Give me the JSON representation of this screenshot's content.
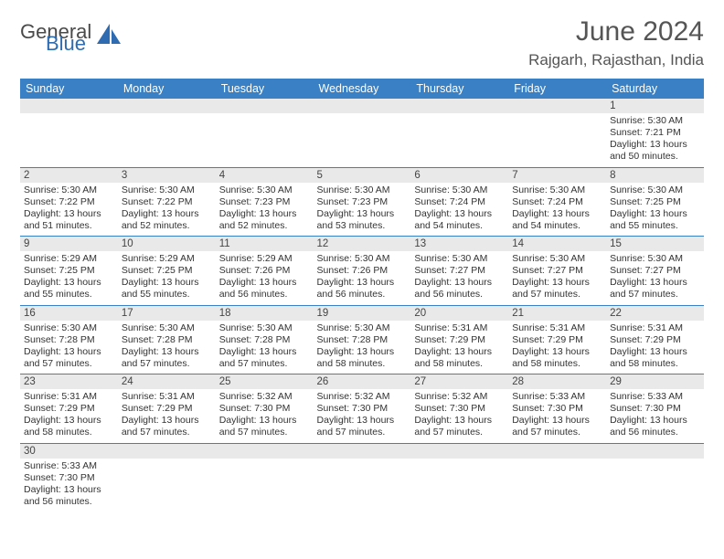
{
  "logo": {
    "part1": "General",
    "part2": "Blue"
  },
  "title": "June 2024",
  "location": "Rajgarh, Rajasthan, India",
  "colors": {
    "header_bg": "#3a80c4",
    "header_fg": "#ffffff",
    "daynum_bg": "#e9e9e9",
    "rule": "#3a80c4",
    "logo_gray": "#4a4a4a",
    "logo_blue": "#2e6bb0"
  },
  "day_headers": [
    "Sunday",
    "Monday",
    "Tuesday",
    "Wednesday",
    "Thursday",
    "Friday",
    "Saturday"
  ],
  "weeks": [
    [
      {
        "empty": true
      },
      {
        "empty": true
      },
      {
        "empty": true
      },
      {
        "empty": true
      },
      {
        "empty": true
      },
      {
        "empty": true
      },
      {
        "day": "1",
        "sunrise": "Sunrise: 5:30 AM",
        "sunset": "Sunset: 7:21 PM",
        "daylight": "Daylight: 13 hours and 50 minutes."
      }
    ],
    [
      {
        "day": "2",
        "sunrise": "Sunrise: 5:30 AM",
        "sunset": "Sunset: 7:22 PM",
        "daylight": "Daylight: 13 hours and 51 minutes."
      },
      {
        "day": "3",
        "sunrise": "Sunrise: 5:30 AM",
        "sunset": "Sunset: 7:22 PM",
        "daylight": "Daylight: 13 hours and 52 minutes."
      },
      {
        "day": "4",
        "sunrise": "Sunrise: 5:30 AM",
        "sunset": "Sunset: 7:23 PM",
        "daylight": "Daylight: 13 hours and 52 minutes."
      },
      {
        "day": "5",
        "sunrise": "Sunrise: 5:30 AM",
        "sunset": "Sunset: 7:23 PM",
        "daylight": "Daylight: 13 hours and 53 minutes."
      },
      {
        "day": "6",
        "sunrise": "Sunrise: 5:30 AM",
        "sunset": "Sunset: 7:24 PM",
        "daylight": "Daylight: 13 hours and 54 minutes."
      },
      {
        "day": "7",
        "sunrise": "Sunrise: 5:30 AM",
        "sunset": "Sunset: 7:24 PM",
        "daylight": "Daylight: 13 hours and 54 minutes."
      },
      {
        "day": "8",
        "sunrise": "Sunrise: 5:30 AM",
        "sunset": "Sunset: 7:25 PM",
        "daylight": "Daylight: 13 hours and 55 minutes."
      }
    ],
    [
      {
        "day": "9",
        "sunrise": "Sunrise: 5:29 AM",
        "sunset": "Sunset: 7:25 PM",
        "daylight": "Daylight: 13 hours and 55 minutes."
      },
      {
        "day": "10",
        "sunrise": "Sunrise: 5:29 AM",
        "sunset": "Sunset: 7:25 PM",
        "daylight": "Daylight: 13 hours and 55 minutes."
      },
      {
        "day": "11",
        "sunrise": "Sunrise: 5:29 AM",
        "sunset": "Sunset: 7:26 PM",
        "daylight": "Daylight: 13 hours and 56 minutes."
      },
      {
        "day": "12",
        "sunrise": "Sunrise: 5:30 AM",
        "sunset": "Sunset: 7:26 PM",
        "daylight": "Daylight: 13 hours and 56 minutes."
      },
      {
        "day": "13",
        "sunrise": "Sunrise: 5:30 AM",
        "sunset": "Sunset: 7:27 PM",
        "daylight": "Daylight: 13 hours and 56 minutes."
      },
      {
        "day": "14",
        "sunrise": "Sunrise: 5:30 AM",
        "sunset": "Sunset: 7:27 PM",
        "daylight": "Daylight: 13 hours and 57 minutes."
      },
      {
        "day": "15",
        "sunrise": "Sunrise: 5:30 AM",
        "sunset": "Sunset: 7:27 PM",
        "daylight": "Daylight: 13 hours and 57 minutes."
      }
    ],
    [
      {
        "day": "16",
        "sunrise": "Sunrise: 5:30 AM",
        "sunset": "Sunset: 7:28 PM",
        "daylight": "Daylight: 13 hours and 57 minutes."
      },
      {
        "day": "17",
        "sunrise": "Sunrise: 5:30 AM",
        "sunset": "Sunset: 7:28 PM",
        "daylight": "Daylight: 13 hours and 57 minutes."
      },
      {
        "day": "18",
        "sunrise": "Sunrise: 5:30 AM",
        "sunset": "Sunset: 7:28 PM",
        "daylight": "Daylight: 13 hours and 57 minutes."
      },
      {
        "day": "19",
        "sunrise": "Sunrise: 5:30 AM",
        "sunset": "Sunset: 7:28 PM",
        "daylight": "Daylight: 13 hours and 58 minutes."
      },
      {
        "day": "20",
        "sunrise": "Sunrise: 5:31 AM",
        "sunset": "Sunset: 7:29 PM",
        "daylight": "Daylight: 13 hours and 58 minutes."
      },
      {
        "day": "21",
        "sunrise": "Sunrise: 5:31 AM",
        "sunset": "Sunset: 7:29 PM",
        "daylight": "Daylight: 13 hours and 58 minutes."
      },
      {
        "day": "22",
        "sunrise": "Sunrise: 5:31 AM",
        "sunset": "Sunset: 7:29 PM",
        "daylight": "Daylight: 13 hours and 58 minutes."
      }
    ],
    [
      {
        "day": "23",
        "sunrise": "Sunrise: 5:31 AM",
        "sunset": "Sunset: 7:29 PM",
        "daylight": "Daylight: 13 hours and 58 minutes."
      },
      {
        "day": "24",
        "sunrise": "Sunrise: 5:31 AM",
        "sunset": "Sunset: 7:29 PM",
        "daylight": "Daylight: 13 hours and 57 minutes."
      },
      {
        "day": "25",
        "sunrise": "Sunrise: 5:32 AM",
        "sunset": "Sunset: 7:30 PM",
        "daylight": "Daylight: 13 hours and 57 minutes."
      },
      {
        "day": "26",
        "sunrise": "Sunrise: 5:32 AM",
        "sunset": "Sunset: 7:30 PM",
        "daylight": "Daylight: 13 hours and 57 minutes."
      },
      {
        "day": "27",
        "sunrise": "Sunrise: 5:32 AM",
        "sunset": "Sunset: 7:30 PM",
        "daylight": "Daylight: 13 hours and 57 minutes."
      },
      {
        "day": "28",
        "sunrise": "Sunrise: 5:33 AM",
        "sunset": "Sunset: 7:30 PM",
        "daylight": "Daylight: 13 hours and 57 minutes."
      },
      {
        "day": "29",
        "sunrise": "Sunrise: 5:33 AM",
        "sunset": "Sunset: 7:30 PM",
        "daylight": "Daylight: 13 hours and 56 minutes."
      }
    ],
    [
      {
        "day": "30",
        "sunrise": "Sunrise: 5:33 AM",
        "sunset": "Sunset: 7:30 PM",
        "daylight": "Daylight: 13 hours and 56 minutes."
      },
      {
        "empty": true
      },
      {
        "empty": true
      },
      {
        "empty": true
      },
      {
        "empty": true
      },
      {
        "empty": true
      },
      {
        "empty": true
      }
    ]
  ]
}
